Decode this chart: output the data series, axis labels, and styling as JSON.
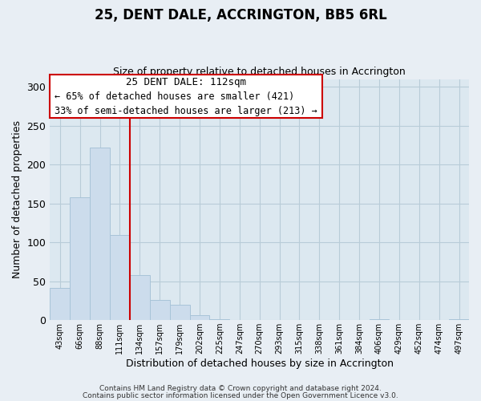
{
  "title": "25, DENT DALE, ACCRINGTON, BB5 6RL",
  "subtitle": "Size of property relative to detached houses in Accrington",
  "xlabel": "Distribution of detached houses by size in Accrington",
  "ylabel": "Number of detached properties",
  "bar_labels": [
    "43sqm",
    "66sqm",
    "88sqm",
    "111sqm",
    "134sqm",
    "157sqm",
    "179sqm",
    "202sqm",
    "225sqm",
    "247sqm",
    "270sqm",
    "293sqm",
    "315sqm",
    "338sqm",
    "361sqm",
    "384sqm",
    "406sqm",
    "429sqm",
    "452sqm",
    "474sqm",
    "497sqm"
  ],
  "bar_values": [
    41,
    158,
    222,
    109,
    58,
    26,
    20,
    6,
    1,
    0,
    0,
    0,
    0,
    0,
    0,
    0,
    1,
    0,
    0,
    0,
    1
  ],
  "bar_color": "#ccdcec",
  "bar_edge_color": "#a8c4d8",
  "highlight_index": 3,
  "highlight_line_color": "#cc0000",
  "ylim": [
    0,
    310
  ],
  "yticks": [
    0,
    50,
    100,
    150,
    200,
    250,
    300
  ],
  "annotation_title": "25 DENT DALE: 112sqm",
  "annotation_line1": "← 65% of detached houses are smaller (421)",
  "annotation_line2": "33% of semi-detached houses are larger (213) →",
  "annotation_box_color": "#ffffff",
  "annotation_box_edge_color": "#cc0000",
  "footer_line1": "Contains HM Land Registry data © Crown copyright and database right 2024.",
  "footer_line2": "Contains public sector information licensed under the Open Government Licence v3.0.",
  "background_color": "#e8eef4",
  "plot_background_color": "#dce8f0",
  "grid_color": "#b8ccd8"
}
